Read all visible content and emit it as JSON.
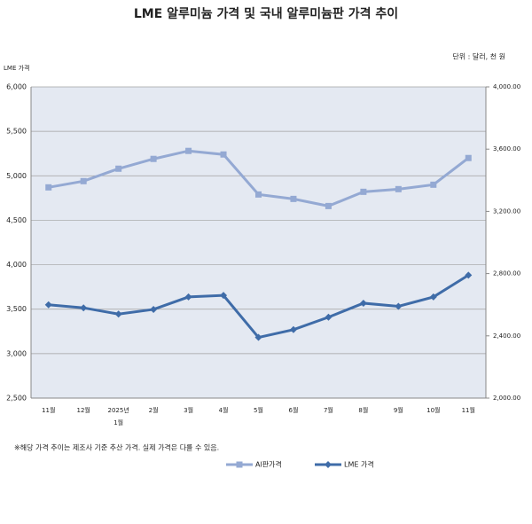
{
  "chart_data": {
    "type": "line",
    "title": "LME 알루미늄 가격 및 국내 알루미늄판 가격 추이",
    "subtitle": "단위 : 달러, 천 원",
    "y_label": "LME 가격",
    "note": "※해당 가격 추이는 제조사 기준 추산 가격. 실제 가격은 다를 수 있음.",
    "categories": [
      "11월",
      "12월",
      "2025년 1월",
      "2월",
      "3월",
      "4월",
      "5월",
      "6월",
      "7월",
      "8월",
      "9월",
      "10월",
      "11월"
    ],
    "series": [
      {
        "name": "Al판가격",
        "color": "#94a9d3",
        "marker": "square",
        "values": [
          4870,
          4940,
          5080,
          5190,
          5280,
          5240,
          4790,
          4740,
          4660,
          4820,
          4850,
          4900,
          5200
        ]
      },
      {
        "name": "LME 가격",
        "color": "#3f6ca8",
        "marker": "diamond",
        "axis": "y2",
        "values": [
          2600,
          2580,
          2540,
          2570,
          2650,
          2660,
          2390,
          2440,
          2520,
          2610,
          2590,
          2650,
          2790
        ]
      }
    ],
    "ylim": [
      2500,
      6000
    ],
    "yticks": [
      {
        "value": 2500,
        "label": "2,500"
      },
      {
        "value": 3000,
        "label": "3,000"
      },
      {
        "value": 3500,
        "label": "3,500"
      },
      {
        "value": 4000,
        "label": "4,000"
      },
      {
        "value": 4500,
        "label": "4,500"
      },
      {
        "value": 5000,
        "label": "5,000"
      },
      {
        "value": 5500,
        "label": "5,500"
      },
      {
        "value": 6000,
        "label": "6,000"
      }
    ],
    "y2lim": [
      2000,
      4000
    ],
    "y2ticks": [
      {
        "value": 2000,
        "label": "2,000.00"
      },
      {
        "value": 2400,
        "label": "2,400.00"
      },
      {
        "value": 2800,
        "label": "2,800.00"
      },
      {
        "value": 3200,
        "label": "3,200.00"
      },
      {
        "value": 3600,
        "label": "3,600.00"
      },
      {
        "value": 4000,
        "label": "4,000.00"
      }
    ],
    "grid": true
  }
}
